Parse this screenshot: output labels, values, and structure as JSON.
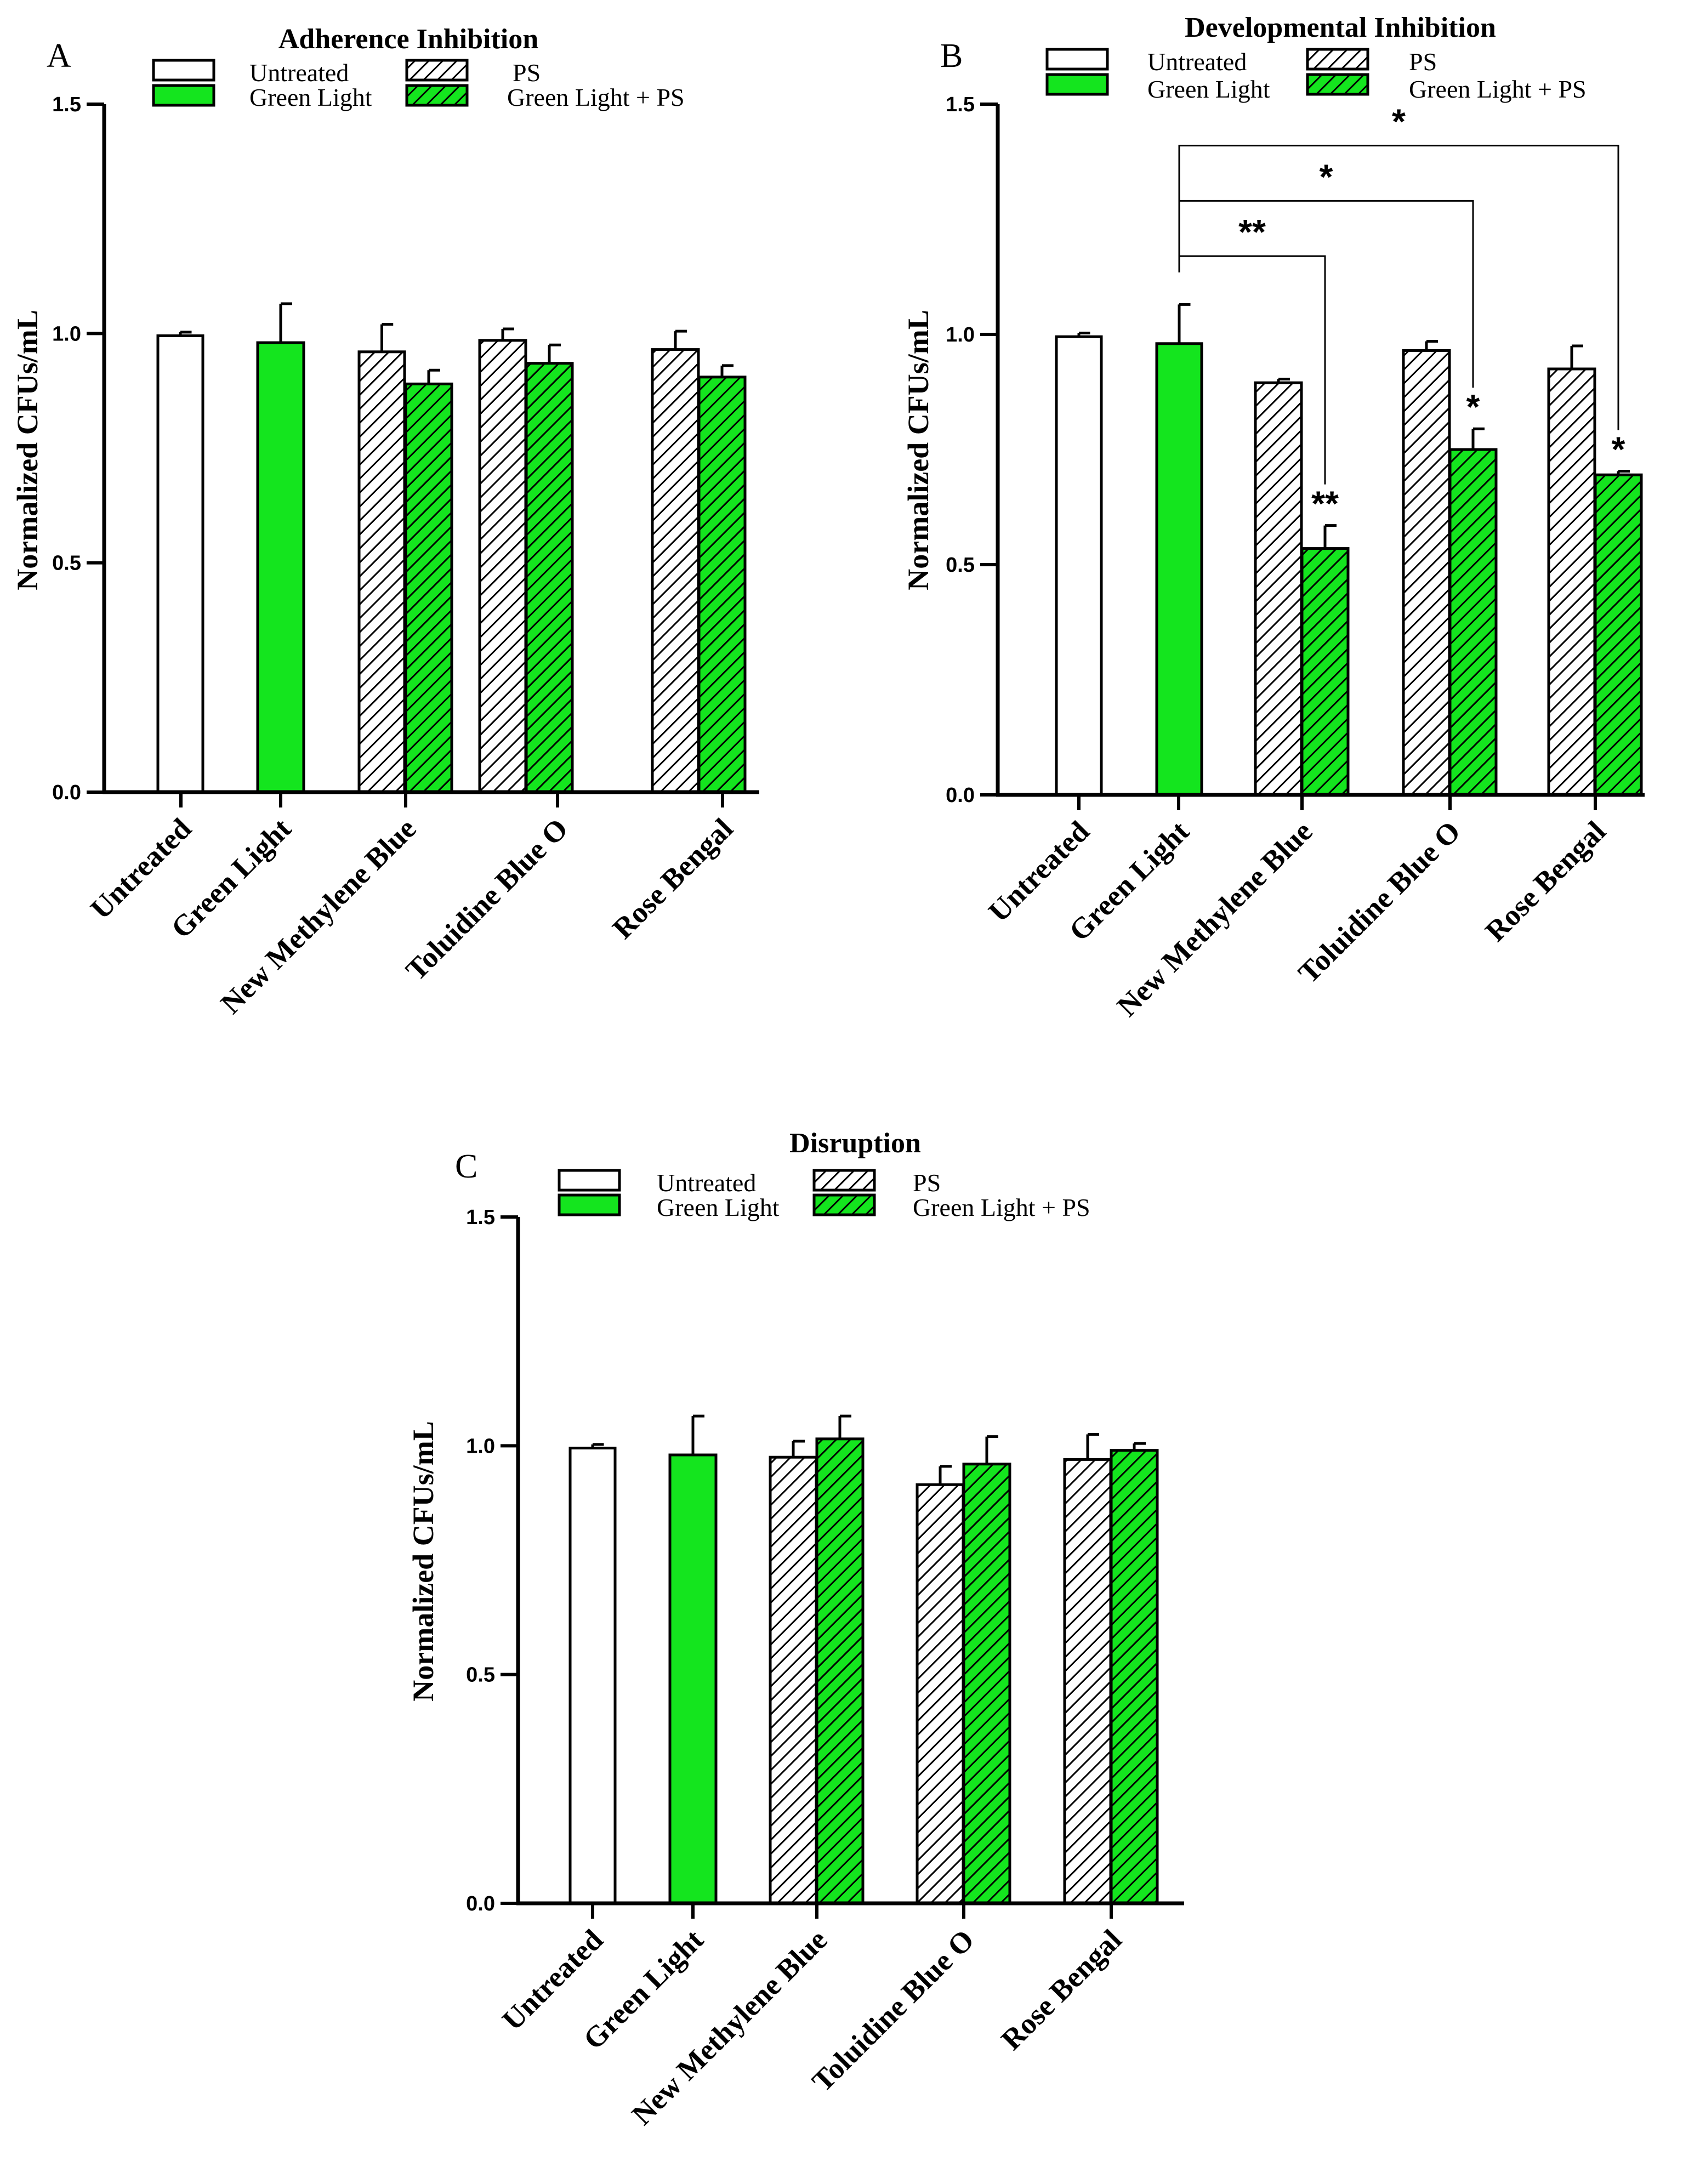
{
  "figure": {
    "colors": {
      "green": "#14e51e",
      "white": "#ffffff",
      "black": "#000000"
    },
    "legend": {
      "untreated": "Untreated",
      "green_light": "Green Light",
      "ps": "PS",
      "green_light_ps": "Green Light + PS"
    }
  },
  "chart_data": [
    {
      "type": "bar",
      "panel": "A",
      "title": "Adherence Inhibition",
      "ylabel": "Normalized CFUs/mL",
      "xlabel": "",
      "ylim": [
        0,
        1.5
      ],
      "yticks": [
        "0.0",
        "0.5",
        "1.0",
        "1.5"
      ],
      "categories": [
        "Untreated",
        "Green Light",
        "New Methylene Blue",
        "Toluidine Blue O",
        "Rose Bengal"
      ],
      "bars": [
        {
          "category": "Untreated",
          "series": "Untreated",
          "value": 0.995,
          "error": 0.008,
          "star": ""
        },
        {
          "category": "Green Light",
          "series": "Green Light",
          "value": 0.98,
          "error": 0.085,
          "star": ""
        },
        {
          "category": "New Methylene Blue",
          "series": "PS",
          "value": 0.96,
          "error": 0.06,
          "star": ""
        },
        {
          "category": "New Methylene Blue",
          "series": "Green Light + PS",
          "value": 0.89,
          "error": 0.03,
          "star": ""
        },
        {
          "category": "Toluidine Blue O",
          "series": "PS",
          "value": 0.985,
          "error": 0.025,
          "star": ""
        },
        {
          "category": "Toluidine Blue O",
          "series": "Green Light + PS",
          "value": 0.935,
          "error": 0.04,
          "star": ""
        },
        {
          "category": "Rose Bengal",
          "series": "PS",
          "value": 0.965,
          "error": 0.04,
          "star": ""
        },
        {
          "category": "Rose Bengal",
          "series": "Green Light + PS",
          "value": 0.905,
          "error": 0.025,
          "star": ""
        }
      ],
      "brackets": []
    },
    {
      "type": "bar",
      "panel": "B",
      "title": "Developmental Inhibition",
      "ylabel": "Normalized CFUs/mL",
      "xlabel": "",
      "ylim": [
        0,
        1.5
      ],
      "yticks": [
        "0.0",
        "0.5",
        "1.0",
        "1.5"
      ],
      "categories": [
        "Untreated",
        "Green Light",
        "New Methylene Blue",
        "Toluidine Blue O",
        "Rose Bengal"
      ],
      "bars": [
        {
          "category": "Untreated",
          "series": "Untreated",
          "value": 0.995,
          "error": 0.008,
          "star": ""
        },
        {
          "category": "Green Light",
          "series": "Green Light",
          "value": 0.98,
          "error": 0.085,
          "star": ""
        },
        {
          "category": "New Methylene Blue",
          "series": "PS",
          "value": 0.895,
          "error": 0.008,
          "star": ""
        },
        {
          "category": "New Methylene Blue",
          "series": "Green Light + PS",
          "value": 0.535,
          "error": 0.05,
          "star": "**"
        },
        {
          "category": "Toluidine Blue O",
          "series": "PS",
          "value": 0.965,
          "error": 0.02,
          "star": ""
        },
        {
          "category": "Toluidine Blue O",
          "series": "Green Light + PS",
          "value": 0.75,
          "error": 0.045,
          "star": "*"
        },
        {
          "category": "Rose Bengal",
          "series": "PS",
          "value": 0.925,
          "error": 0.05,
          "star": ""
        },
        {
          "category": "Rose Bengal",
          "series": "Green Light + PS",
          "value": 0.695,
          "error": 0.008,
          "star": "*"
        }
      ],
      "brackets": [
        {
          "from_bar": 1,
          "to_bar": 3,
          "level": 1.17,
          "label": "**"
        },
        {
          "from_bar": 1,
          "to_bar": 5,
          "level": 1.29,
          "label": "*"
        },
        {
          "from_bar": 1,
          "to_bar": 7,
          "level": 1.41,
          "label": "*"
        }
      ]
    },
    {
      "type": "bar",
      "panel": "C",
      "title": "Disruption",
      "ylabel": "Normalized CFUs/mL",
      "xlabel": "",
      "ylim": [
        0,
        1.5
      ],
      "yticks": [
        "0.0",
        "0.5",
        "1.0",
        "1.5"
      ],
      "categories": [
        "Untreated",
        "Green Light",
        "New Methylene Blue",
        "Toluidine Blue O",
        "Rose Bengal"
      ],
      "bars": [
        {
          "category": "Untreated",
          "series": "Untreated",
          "value": 0.995,
          "error": 0.008,
          "star": ""
        },
        {
          "category": "Green Light",
          "series": "Green Light",
          "value": 0.98,
          "error": 0.085,
          "star": ""
        },
        {
          "category": "New Methylene Blue",
          "series": "PS",
          "value": 0.975,
          "error": 0.035,
          "star": ""
        },
        {
          "category": "New Methylene Blue",
          "series": "Green Light + PS",
          "value": 1.015,
          "error": 0.05,
          "star": ""
        },
        {
          "category": "Toluidine Blue O",
          "series": "PS",
          "value": 0.915,
          "error": 0.04,
          "star": ""
        },
        {
          "category": "Toluidine Blue O",
          "series": "Green Light + PS",
          "value": 0.96,
          "error": 0.06,
          "star": ""
        },
        {
          "category": "Rose Bengal",
          "series": "PS",
          "value": 0.97,
          "error": 0.055,
          "star": ""
        },
        {
          "category": "Rose Bengal",
          "series": "Green Light + PS",
          "value": 0.99,
          "error": 0.015,
          "star": ""
        }
      ],
      "brackets": []
    }
  ]
}
